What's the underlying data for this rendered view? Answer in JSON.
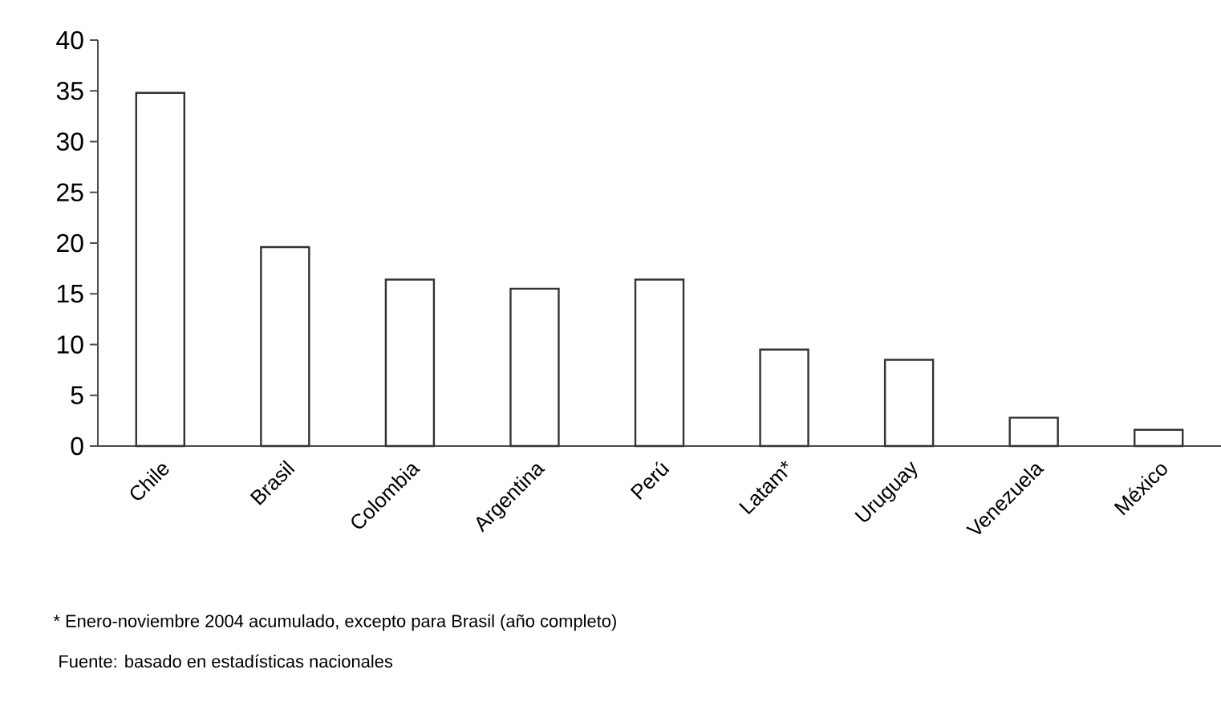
{
  "chart_data": {
    "type": "bar",
    "categories": [
      "Chile",
      "Brasil",
      "Colombia",
      "Argentina",
      "Perú",
      "Latam*",
      "Uruguay",
      "Venezuela",
      "México"
    ],
    "values": [
      34.8,
      19.6,
      16.4,
      15.5,
      16.4,
      9.5,
      8.5,
      2.8,
      1.6
    ],
    "color": "#ffffff",
    "ylim": [
      0,
      40
    ],
    "yticks": [
      0,
      5,
      10,
      15,
      20,
      25,
      30,
      35,
      40
    ],
    "annotations": [
      "* Enero-noviembre 2004 acumulado, excepto para Brasil (año completo)",
      "Fuente:    basado en estadísticas nacionales"
    ]
  }
}
